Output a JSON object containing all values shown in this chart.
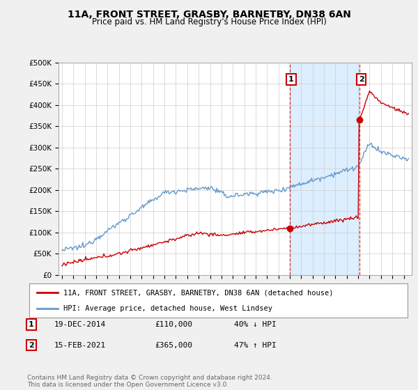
{
  "title": "11A, FRONT STREET, GRASBY, BARNETBY, DN38 6AN",
  "subtitle": "Price paid vs. HM Land Registry's House Price Index (HPI)",
  "title_fontsize": 10,
  "subtitle_fontsize": 8.5,
  "ylim": [
    0,
    500000
  ],
  "yticks": [
    0,
    50000,
    100000,
    150000,
    200000,
    250000,
    300000,
    350000,
    400000,
    450000,
    500000
  ],
  "ytick_labels": [
    "£0",
    "£50K",
    "£100K",
    "£150K",
    "£200K",
    "£250K",
    "£300K",
    "£350K",
    "£400K",
    "£450K",
    "£500K"
  ],
  "xlim_start": 1994.7,
  "xlim_end": 2025.7,
  "red_color": "#cc0000",
  "blue_color": "#6699cc",
  "shade_color": "#ddeeff",
  "marker1_x": 2014.97,
  "marker1_y": 110000,
  "marker2_x": 2021.12,
  "marker2_y": 365000,
  "vline1_x": 2014.97,
  "vline2_x": 2021.12,
  "legend_label_red": "11A, FRONT STREET, GRASBY, BARNETBY, DN38 6AN (detached house)",
  "legend_label_blue": "HPI: Average price, detached house, West Lindsey",
  "table_row1": [
    "1",
    "19-DEC-2014",
    "£110,000",
    "40% ↓ HPI"
  ],
  "table_row2": [
    "2",
    "15-FEB-2021",
    "£365,000",
    "47% ↑ HPI"
  ],
  "footnote": "Contains HM Land Registry data © Crown copyright and database right 2024.\nThis data is licensed under the Open Government Licence v3.0.",
  "background_color": "#f0f0f0",
  "plot_bg_color": "#ffffff",
  "grid_color": "#cccccc"
}
